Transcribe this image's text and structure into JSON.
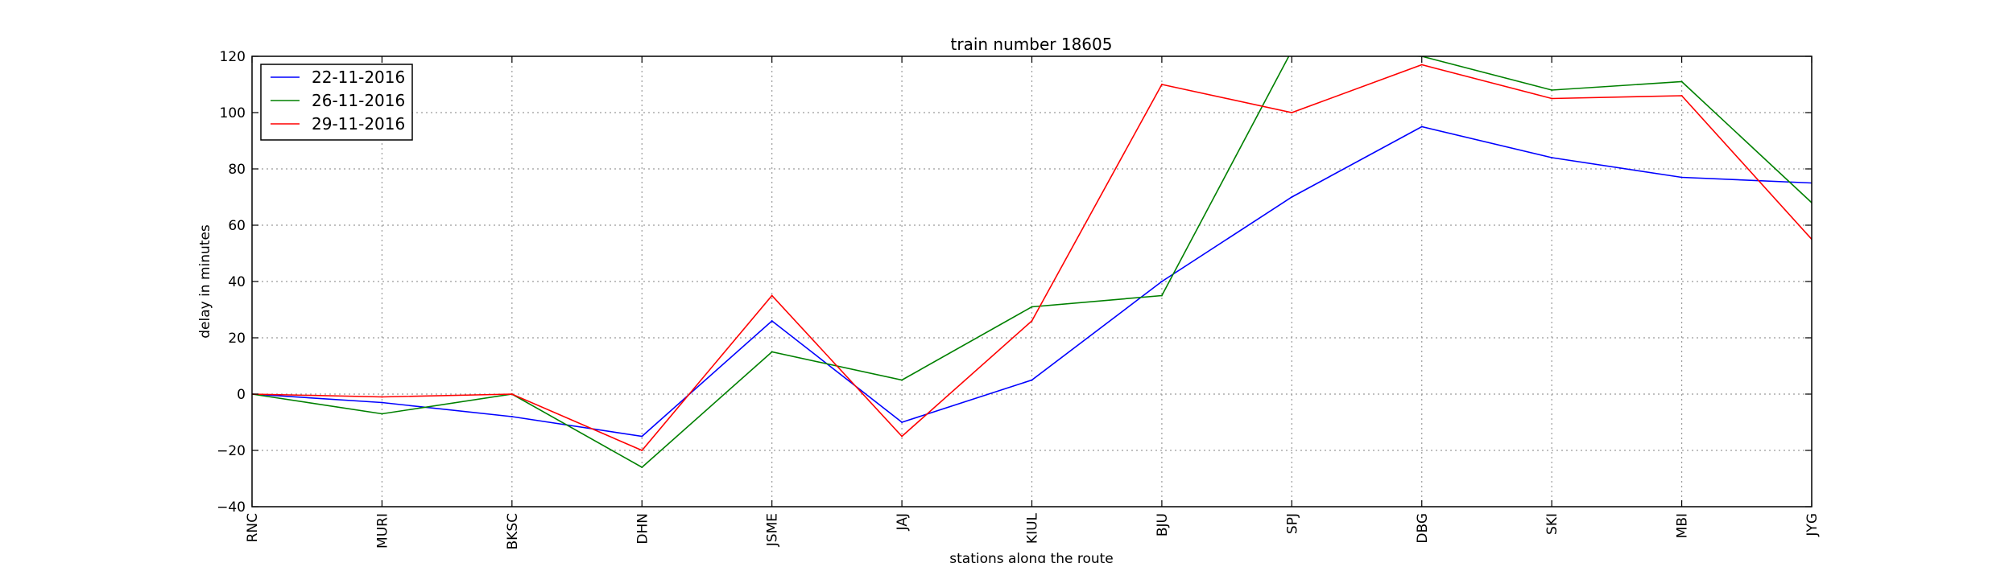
{
  "chart_data": {
    "type": "line",
    "title": "train number 18605",
    "xlabel": "stations along the route",
    "ylabel": "delay in minutes",
    "categories": [
      "RNC",
      "MURI",
      "BKSC",
      "DHN",
      "JSME",
      "JAJ",
      "KIUL",
      "BJU",
      "SPJ",
      "DBG",
      "SKI",
      "MBI",
      "JYG"
    ],
    "ylim": [
      -40,
      120
    ],
    "yticks": [
      -40,
      -20,
      0,
      20,
      40,
      60,
      80,
      100,
      120
    ],
    "ytick_labels": [
      "−40",
      "−20",
      "0",
      "20",
      "40",
      "60",
      "80",
      "100",
      "120"
    ],
    "grid": true,
    "legend_position": "top-left",
    "series": [
      {
        "name": "22-11-2016",
        "color": "#0000ff",
        "values": [
          0,
          -3,
          -8,
          -15,
          26,
          -10,
          5,
          40,
          70,
          95,
          84,
          77,
          75
        ]
      },
      {
        "name": "26-11-2016",
        "color": "#008000",
        "values": [
          0,
          -7,
          0,
          -26,
          15,
          5,
          31,
          35,
          122,
          120,
          108,
          111,
          68
        ]
      },
      {
        "name": "29-11-2016",
        "color": "#ff0000",
        "values": [
          0,
          -1,
          0,
          -20,
          35,
          -15,
          26,
          110,
          100,
          117,
          105,
          106,
          55
        ]
      }
    ]
  }
}
